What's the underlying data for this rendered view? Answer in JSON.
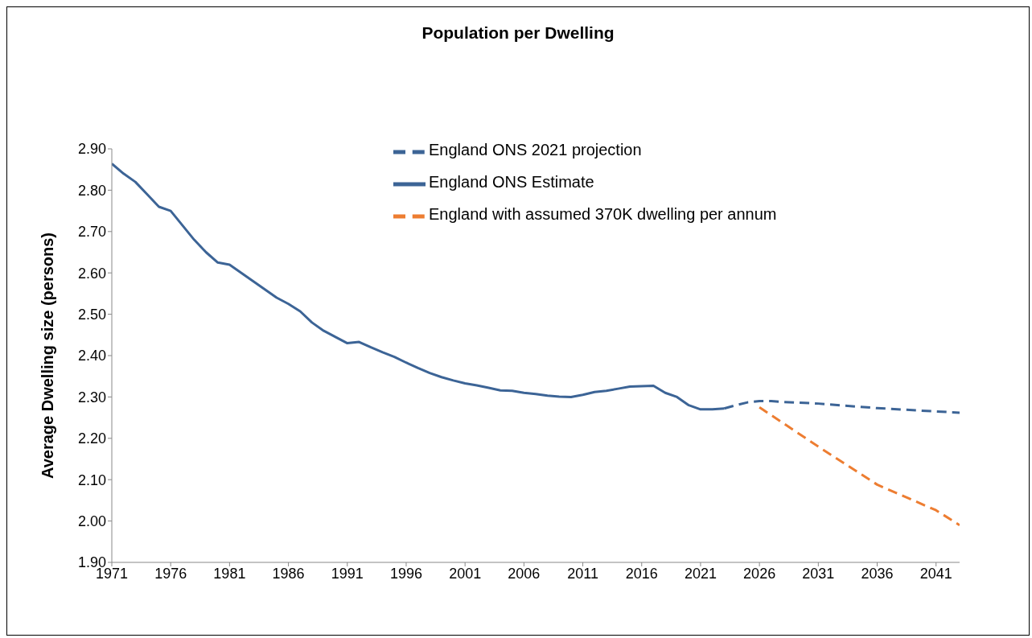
{
  "chart_data": {
    "type": "line",
    "title": "Population per Dwelling",
    "ylabel": "Average Dwelling size (persons)",
    "xlim": [
      1971,
      2043
    ],
    "xticks": [
      1971,
      1976,
      1981,
      1986,
      1991,
      1996,
      2001,
      2006,
      2011,
      2016,
      2021,
      2026,
      2031,
      2036,
      2041
    ],
    "ylim": [
      1.9,
      2.9
    ],
    "yticks": [
      {
        "value": 1.9,
        "label": "1.90"
      },
      {
        "value": 2.0,
        "label": "2.00"
      },
      {
        "value": 2.1,
        "label": "2.10"
      },
      {
        "value": 2.2,
        "label": "2.20"
      },
      {
        "value": 2.3,
        "label": "2.30"
      },
      {
        "value": 2.4,
        "label": "2.40"
      },
      {
        "value": 2.5,
        "label": "2.50"
      },
      {
        "value": 2.6,
        "label": "2.60"
      },
      {
        "value": 2.7,
        "label": "2.70"
      },
      {
        "value": 2.8,
        "label": "2.80"
      },
      {
        "value": 2.9,
        "label": "2.90"
      }
    ],
    "grid": false,
    "legend": "top",
    "marker": "none",
    "series": [
      {
        "name": "England ONS Estimate",
        "color": "#3c6496",
        "line_style": "solid",
        "x": [
          1971,
          1972,
          1973,
          1974,
          1975,
          1976,
          1977,
          1978,
          1979,
          1980,
          1981,
          1982,
          1983,
          1984,
          1985,
          1986,
          1987,
          1988,
          1989,
          1990,
          1991,
          1992,
          1993,
          1994,
          1995,
          1996,
          1997,
          1998,
          1999,
          2000,
          2001,
          2002,
          2003,
          2004,
          2005,
          2006,
          2007,
          2008,
          2009,
          2010,
          2011,
          2012,
          2013,
          2014,
          2015,
          2016,
          2017,
          2018,
          2019,
          2020,
          2021,
          2022,
          2023
        ],
        "values": [
          2.864,
          2.84,
          2.82,
          2.79,
          2.76,
          2.75,
          2.715,
          2.68,
          2.65,
          2.625,
          2.62,
          2.6,
          2.58,
          2.56,
          2.54,
          2.525,
          2.507,
          2.48,
          2.46,
          2.445,
          2.43,
          2.433,
          2.42,
          2.408,
          2.397,
          2.383,
          2.37,
          2.358,
          2.348,
          2.34,
          2.333,
          2.328,
          2.322,
          2.316,
          2.315,
          2.31,
          2.307,
          2.303,
          2.301,
          2.3,
          2.305,
          2.312,
          2.315,
          2.32,
          2.325,
          2.326,
          2.327,
          2.31,
          2.3,
          2.28,
          2.27,
          2.27,
          2.272
        ]
      },
      {
        "name": "England ONS 2021 projection",
        "color": "#3c6496",
        "line_style": "dashed",
        "x": [
          2023,
          2024,
          2025,
          2026,
          2027,
          2028,
          2031,
          2036,
          2041,
          2043
        ],
        "values": [
          2.272,
          2.28,
          2.287,
          2.29,
          2.29,
          2.288,
          2.284,
          2.273,
          2.265,
          2.262
        ]
      },
      {
        "name": "England with assumed 370K dwelling per annum",
        "color": "#ed7d31",
        "line_style": "dashed",
        "x": [
          2026,
          2031,
          2036,
          2041,
          2043
        ],
        "values": [
          2.275,
          2.18,
          2.088,
          2.026,
          1.99
        ]
      }
    ]
  }
}
